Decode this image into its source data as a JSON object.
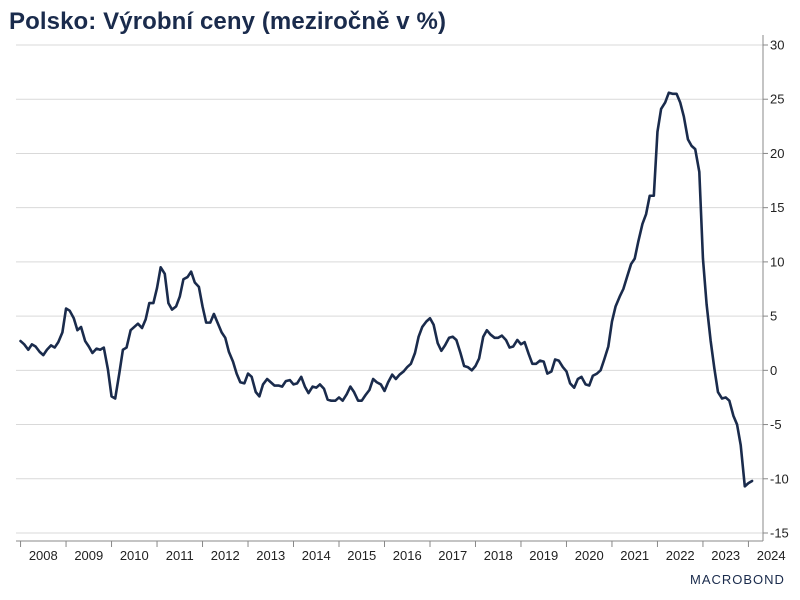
{
  "chart_data": {
    "type": "line",
    "title": "Polsko: Výrobní ceny (meziročně v %)",
    "xlabel": "",
    "ylabel": "",
    "ylim": [
      -15,
      30
    ],
    "y_ticks": [
      30,
      25,
      20,
      15,
      10,
      5,
      0,
      -5,
      -10,
      -15
    ],
    "x_tick_labels": [
      "2008",
      "2009",
      "2010",
      "2011",
      "2012",
      "2013",
      "2014",
      "2015",
      "2016",
      "2017",
      "2018",
      "2019",
      "2020",
      "2021",
      "2022",
      "2023",
      "2024"
    ],
    "grid": true,
    "y_axis_side": "right",
    "line_color": "#1a2b4c",
    "series": [
      {
        "x": [
          2008.0,
          2008.08,
          2008.17,
          2008.25,
          2008.33,
          2008.42,
          2008.5,
          2008.58,
          2008.67,
          2008.75,
          2008.83,
          2008.92,
          2009.0,
          2009.08,
          2009.17,
          2009.25,
          2009.33,
          2009.42,
          2009.5,
          2009.58,
          2009.67,
          2009.75,
          2009.83,
          2009.92,
          2010.0,
          2010.08,
          2010.17,
          2010.25,
          2010.33,
          2010.42,
          2010.5,
          2010.58,
          2010.67,
          2010.75,
          2010.83,
          2010.92,
          2011.0,
          2011.08,
          2011.17,
          2011.25,
          2011.33,
          2011.42,
          2011.5,
          2011.58,
          2011.67,
          2011.75,
          2011.83,
          2011.92,
          2012.0,
          2012.08,
          2012.17,
          2012.25,
          2012.33,
          2012.42,
          2012.5,
          2012.58,
          2012.67,
          2012.75,
          2012.83,
          2012.92,
          2013.0,
          2013.08,
          2013.17,
          2013.25,
          2013.33,
          2013.42,
          2013.5,
          2013.58,
          2013.67,
          2013.75,
          2013.83,
          2013.92,
          2014.0,
          2014.08,
          2014.17,
          2014.25,
          2014.33,
          2014.42,
          2014.5,
          2014.58,
          2014.67,
          2014.75,
          2014.83,
          2014.92,
          2015.0,
          2015.08,
          2015.17,
          2015.25,
          2015.33,
          2015.42,
          2015.5,
          2015.58,
          2015.67,
          2015.75,
          2015.83,
          2015.92,
          2016.0,
          2016.08,
          2016.17,
          2016.25,
          2016.33,
          2016.42,
          2016.5,
          2016.58,
          2016.67,
          2016.75,
          2016.83,
          2016.92,
          2017.0,
          2017.08,
          2017.17,
          2017.25,
          2017.33,
          2017.42,
          2017.5,
          2017.58,
          2017.67,
          2017.75,
          2017.83,
          2017.92,
          2018.0,
          2018.08,
          2018.17,
          2018.25,
          2018.33,
          2018.42,
          2018.5,
          2018.58,
          2018.67,
          2018.75,
          2018.83,
          2018.92,
          2019.0,
          2019.08,
          2019.17,
          2019.25,
          2019.33,
          2019.42,
          2019.5,
          2019.58,
          2019.67,
          2019.75,
          2019.83,
          2019.92,
          2020.0,
          2020.08,
          2020.17,
          2020.25,
          2020.33,
          2020.42,
          2020.5,
          2020.58,
          2020.67,
          2020.75,
          2020.83,
          2020.92,
          2021.0,
          2021.08,
          2021.17,
          2021.25,
          2021.33,
          2021.42,
          2021.5,
          2021.58,
          2021.67,
          2021.75,
          2021.83,
          2021.92,
          2022.0,
          2022.08,
          2022.17,
          2022.25,
          2022.33,
          2022.42,
          2022.5,
          2022.58,
          2022.67,
          2022.75,
          2022.83,
          2022.92,
          2023.0,
          2023.08,
          2023.17,
          2023.25,
          2023.33,
          2023.42,
          2023.5,
          2023.58,
          2023.67,
          2023.75,
          2023.83,
          2023.92,
          2024.0,
          2024.08
        ],
        "y": [
          2.7,
          2.4,
          1.9,
          2.4,
          2.2,
          1.7,
          1.4,
          1.9,
          2.3,
          2.1,
          2.6,
          3.5,
          5.7,
          5.5,
          4.8,
          3.7,
          4.0,
          2.7,
          2.2,
          1.6,
          2.0,
          1.9,
          2.1,
          0.1,
          -2.4,
          -2.6,
          -0.3,
          1.9,
          2.1,
          3.7,
          4.0,
          4.3,
          3.9,
          4.7,
          6.2,
          6.2,
          7.6,
          9.5,
          8.9,
          6.2,
          5.6,
          5.9,
          6.8,
          8.4,
          8.6,
          9.1,
          8.1,
          7.7,
          5.9,
          4.4,
          4.4,
          5.2,
          4.4,
          3.5,
          3.0,
          1.7,
          0.8,
          -0.3,
          -1.1,
          -1.2,
          -0.3,
          -0.6,
          -2.0,
          -2.4,
          -1.3,
          -0.8,
          -1.1,
          -1.4,
          -1.4,
          -1.5,
          -1.0,
          -0.9,
          -1.3,
          -1.2,
          -0.6,
          -1.5,
          -2.1,
          -1.5,
          -1.6,
          -1.3,
          -1.7,
          -2.7,
          -2.8,
          -2.8,
          -2.5,
          -2.8,
          -2.2,
          -1.5,
          -2.0,
          -2.8,
          -2.8,
          -2.3,
          -1.8,
          -0.8,
          -1.1,
          -1.3,
          -1.9,
          -1.1,
          -0.4,
          -0.8,
          -0.4,
          -0.1,
          0.3,
          0.6,
          1.6,
          3.1,
          4.0,
          4.5,
          4.8,
          4.2,
          2.5,
          1.8,
          2.3,
          3.0,
          3.1,
          2.8,
          1.6,
          0.4,
          0.3,
          0.0,
          0.4,
          1.1,
          3.1,
          3.7,
          3.3,
          3.0,
          3.0,
          3.2,
          2.8,
          2.1,
          2.2,
          2.8,
          2.4,
          2.6,
          1.5,
          0.6,
          0.6,
          0.9,
          0.8,
          -0.3,
          -0.1,
          1.0,
          0.9,
          0.3,
          -0.1,
          -1.2,
          -1.6,
          -0.8,
          -0.6,
          -1.3,
          -1.4,
          -0.5,
          -0.3,
          0.0,
          1.0,
          2.2,
          4.5,
          5.9,
          6.8,
          7.5,
          8.6,
          9.8,
          10.3,
          11.9,
          13.5,
          14.4,
          16.1,
          16.1,
          22.0,
          24.1,
          24.7,
          25.6,
          25.5,
          25.5,
          24.7,
          23.4,
          21.3,
          20.7,
          20.4,
          18.3,
          10.3,
          6.1,
          2.7,
          0.2,
          -2.0,
          -2.6,
          -2.5,
          -2.8,
          -4.2,
          -5.0,
          -6.9,
          -10.7,
          -10.4,
          -10.2
        ]
      }
    ]
  },
  "branding": {
    "logo_text": "MACROBOND"
  }
}
